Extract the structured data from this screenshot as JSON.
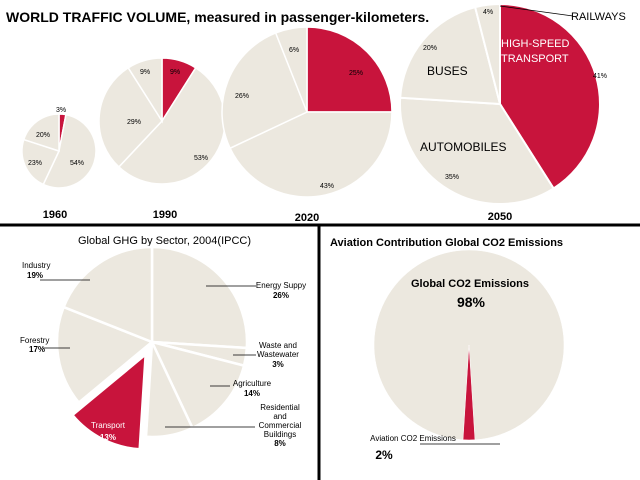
{
  "colors": {
    "accent": "#C8143C",
    "neutral": "#ECE8DF",
    "divider": "#000000",
    "leader": "#000000",
    "text": "#000000"
  },
  "panel_top": {
    "title": "WORLD TRAFFIC VOLUME, measured in passenger-kilometers."
  },
  "panel_left": {
    "title": "Global GHG by Sector, 2004(IPCC)"
  },
  "panel_right": {
    "title": "Aviation Contribution Global CO2 Emissions"
  },
  "chart_data": [
    {
      "type": "pie",
      "title": "WORLD TRAFFIC VOLUME, measured in passenger-kilometers.",
      "subtitle": "1960",
      "categories": [
        "Railways",
        "Automobiles",
        "Buses",
        "High-speed transport"
      ],
      "values": [
        20,
        54,
        23,
        3
      ],
      "value_labels": [
        "20%",
        "54%",
        "23%",
        "3%"
      ]
    },
    {
      "type": "pie",
      "subtitle": "1990",
      "categories": [
        "Railways",
        "Automobiles",
        "Buses",
        "High-speed transport"
      ],
      "values": [
        9,
        53,
        29,
        9
      ],
      "value_labels": [
        "9%",
        "53%",
        "29%",
        "9%"
      ]
    },
    {
      "type": "pie",
      "subtitle": "2020",
      "categories": [
        "Railways",
        "Automobiles",
        "Buses",
        "High-speed transport"
      ],
      "values": [
        6,
        43,
        26,
        25
      ],
      "value_labels": [
        "6%",
        "43%",
        "26%",
        "25%"
      ]
    },
    {
      "type": "pie",
      "subtitle": "2050",
      "categories": [
        "RAILWAYS",
        "AUTOMOBILES",
        "BUSES",
        "HIGH-SPEED TRANSPORT"
      ],
      "category_labels": [
        "RAILWAYS",
        "AUTOMOBILES",
        "BUSES",
        "HIGH-SPEED\nTRANSPORT"
      ],
      "values": [
        4,
        35,
        20,
        41
      ],
      "value_labels": [
        "4%",
        "35%",
        "20%",
        "41%"
      ]
    },
    {
      "type": "pie",
      "title": "Global GHG by Sector, 2004(IPCC)",
      "categories": [
        "Energy Suppy",
        "Waste and Wastewater",
        "Agriculture",
        "Residential and Commercial Buildings",
        "Transport",
        "Forestry",
        "Industry"
      ],
      "category_labels": [
        "Energy Suppy",
        "Waste and\nWastewater",
        "Agriculture",
        "Residential\nand\nCommercial\nBuildings",
        "Transport",
        "Forestry",
        "Industry"
      ],
      "values": [
        26,
        3,
        14,
        8,
        13,
        17,
        19
      ],
      "value_labels": [
        "26%",
        "3%",
        "14%",
        "8%",
        "13%",
        "17%",
        "19%"
      ],
      "exploded": "Transport"
    },
    {
      "type": "pie",
      "title": "Aviation Contribution Global CO2 Emissions",
      "categories": [
        "Global CO2 Emissions",
        "Aviation CO2 Emissions"
      ],
      "values": [
        98,
        2
      ],
      "value_labels": [
        "98%",
        "2%"
      ]
    }
  ]
}
